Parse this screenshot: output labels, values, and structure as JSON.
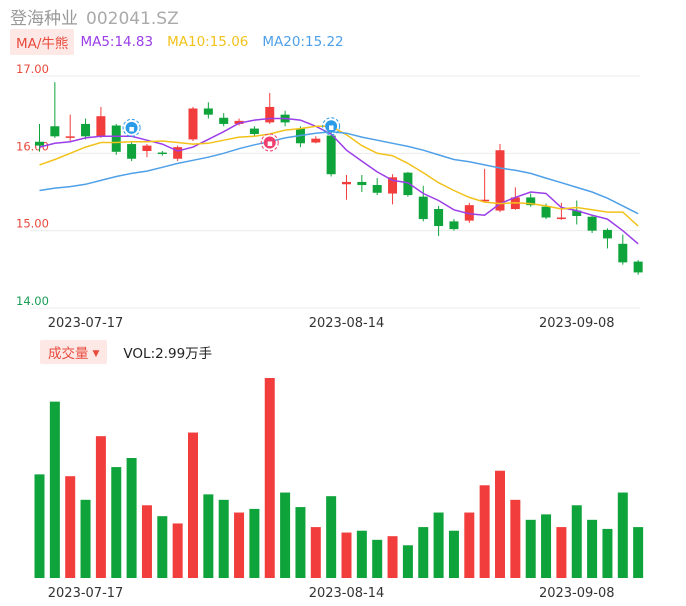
{
  "header": {
    "name": "登海种业",
    "code": "002041.SZ"
  },
  "ma_legend": {
    "tag": "MA/牛熊",
    "ma5": "MA5:14.83",
    "ma10": "MA10:15.06",
    "ma20": "MA20:15.22"
  },
  "volume_legend": {
    "tag": "成交量",
    "text": "VOL:2.99万手"
  },
  "colors": {
    "up": "#f23d3d",
    "down": "#0fa33b",
    "ma5": "#9b3ee8",
    "ma10": "#f2c21b",
    "ma20": "#4fa0e8",
    "y_label_high": "#e84a3c",
    "y_label_low": "#1a9e55",
    "grid": "#ececec"
  },
  "chart_data": [
    {
      "type": "candlestick",
      "ylim": [
        14.0,
        17.0
      ],
      "y_ticks": [
        "17.00",
        "16.00",
        "15.00",
        "14.00"
      ],
      "x_tick_labels": [
        {
          "index": 3,
          "label": "2023-07-17"
        },
        {
          "index": 20,
          "label": "2023-08-14"
        },
        {
          "index": 35,
          "label": "2023-09-08"
        }
      ],
      "candles": [
        {
          "o": 16.15,
          "c": 16.1,
          "h": 16.38,
          "l": 16.02
        },
        {
          "o": 16.35,
          "c": 16.22,
          "h": 16.92,
          "l": 16.2
        },
        {
          "o": 16.2,
          "c": 16.22,
          "h": 16.5,
          "l": 16.15
        },
        {
          "o": 16.38,
          "c": 16.22,
          "h": 16.45,
          "l": 16.18
        },
        {
          "o": 16.22,
          "c": 16.48,
          "h": 16.6,
          "l": 16.2
        },
        {
          "o": 16.36,
          "c": 16.02,
          "h": 16.38,
          "l": 15.98
        },
        {
          "o": 16.12,
          "c": 15.93,
          "h": 16.15,
          "l": 15.9
        },
        {
          "o": 16.03,
          "c": 16.1,
          "h": 16.12,
          "l": 15.95
        },
        {
          "o": 16.01,
          "c": 16.0,
          "h": 16.03,
          "l": 15.97
        },
        {
          "o": 15.93,
          "c": 16.08,
          "h": 16.1,
          "l": 15.9
        },
        {
          "o": 16.18,
          "c": 16.58,
          "h": 16.6,
          "l": 16.16
        },
        {
          "o": 16.58,
          "c": 16.5,
          "h": 16.66,
          "l": 16.45
        },
        {
          "o": 16.46,
          "c": 16.38,
          "h": 16.52,
          "l": 16.35
        },
        {
          "o": 16.38,
          "c": 16.42,
          "h": 16.45,
          "l": 16.36
        },
        {
          "o": 16.32,
          "c": 16.25,
          "h": 16.35,
          "l": 16.22
        },
        {
          "o": 16.4,
          "c": 16.6,
          "h": 16.78,
          "l": 16.38
        },
        {
          "o": 16.5,
          "c": 16.4,
          "h": 16.55,
          "l": 16.35
        },
        {
          "o": 16.32,
          "c": 16.13,
          "h": 16.35,
          "l": 16.08
        },
        {
          "o": 16.14,
          "c": 16.19,
          "h": 16.22,
          "l": 16.13
        },
        {
          "o": 16.23,
          "c": 15.73,
          "h": 16.3,
          "l": 15.7
        },
        {
          "o": 15.6,
          "c": 15.63,
          "h": 15.72,
          "l": 15.4
        },
        {
          "o": 15.63,
          "c": 15.59,
          "h": 15.72,
          "l": 15.5
        },
        {
          "o": 15.59,
          "c": 15.49,
          "h": 15.68,
          "l": 15.46
        },
        {
          "o": 15.48,
          "c": 15.69,
          "h": 15.73,
          "l": 15.34
        },
        {
          "o": 15.75,
          "c": 15.46,
          "h": 15.76,
          "l": 15.44
        },
        {
          "o": 15.44,
          "c": 15.15,
          "h": 15.58,
          "l": 15.12
        },
        {
          "o": 15.28,
          "c": 15.06,
          "h": 15.32,
          "l": 14.93
        },
        {
          "o": 15.12,
          "c": 15.02,
          "h": 15.15,
          "l": 15.0
        },
        {
          "o": 15.13,
          "c": 15.33,
          "h": 15.36,
          "l": 15.1
        },
        {
          "o": 15.38,
          "c": 15.4,
          "h": 15.8,
          "l": 15.37
        },
        {
          "o": 15.26,
          "c": 16.04,
          "h": 16.12,
          "l": 15.24
        },
        {
          "o": 15.28,
          "c": 15.43,
          "h": 15.56,
          "l": 15.27
        },
        {
          "o": 15.43,
          "c": 15.33,
          "h": 15.48,
          "l": 15.31
        },
        {
          "o": 15.31,
          "c": 15.17,
          "h": 15.35,
          "l": 15.15
        },
        {
          "o": 15.15,
          "c": 15.17,
          "h": 15.36,
          "l": 15.14
        },
        {
          "o": 15.26,
          "c": 15.19,
          "h": 15.39,
          "l": 15.08
        },
        {
          "o": 15.18,
          "c": 15.0,
          "h": 15.2,
          "l": 14.97
        },
        {
          "o": 15.01,
          "c": 14.9,
          "h": 15.03,
          "l": 14.77
        },
        {
          "o": 14.83,
          "c": 14.59,
          "h": 14.95,
          "l": 14.56
        },
        {
          "o": 14.6,
          "c": 14.46,
          "h": 14.62,
          "l": 14.43
        }
      ],
      "series": [
        {
          "name": "MA5",
          "values": [
            16.08,
            16.13,
            16.15,
            16.2,
            16.22,
            16.22,
            16.22,
            16.17,
            16.12,
            16.03,
            16.08,
            16.18,
            16.28,
            16.39,
            16.43,
            16.45,
            16.45,
            16.43,
            16.35,
            16.25,
            16.04,
            15.9,
            15.76,
            15.65,
            15.62,
            15.48,
            15.39,
            15.27,
            15.22,
            15.2,
            15.35,
            15.43,
            15.5,
            15.48,
            15.3,
            15.26,
            15.2,
            15.15,
            15.0,
            14.83
          ]
        },
        {
          "name": "MA10",
          "values": [
            15.85,
            15.92,
            16.0,
            16.08,
            16.14,
            16.14,
            16.15,
            16.15,
            16.16,
            16.14,
            16.12,
            16.13,
            16.17,
            16.21,
            16.22,
            16.25,
            16.3,
            16.32,
            16.35,
            16.35,
            16.24,
            16.1,
            16.0,
            15.97,
            15.87,
            15.75,
            15.62,
            15.52,
            15.43,
            15.37,
            15.35,
            15.36,
            15.35,
            15.32,
            15.28,
            15.3,
            15.27,
            15.24,
            15.24,
            15.06
          ]
        },
        {
          "name": "MA20",
          "values": [
            15.52,
            15.55,
            15.57,
            15.6,
            15.65,
            15.7,
            15.74,
            15.77,
            15.82,
            15.87,
            15.91,
            15.95,
            16.0,
            16.06,
            16.11,
            16.15,
            16.2,
            16.23,
            16.26,
            16.28,
            16.26,
            16.21,
            16.17,
            16.13,
            16.09,
            16.04,
            15.98,
            15.92,
            15.89,
            15.85,
            15.81,
            15.78,
            15.74,
            15.68,
            15.62,
            15.56,
            15.5,
            15.42,
            15.32,
            15.22
          ]
        }
      ],
      "volume": [
        57,
        97,
        56,
        43,
        78,
        61,
        66,
        40,
        34,
        30,
        80,
        46,
        43,
        36,
        38,
        110,
        47,
        39,
        28,
        45,
        25,
        26,
        21,
        23,
        18,
        28,
        36,
        26,
        36,
        51,
        59,
        43,
        32,
        35,
        28,
        40,
        32,
        27,
        47,
        28
      ]
    }
  ]
}
